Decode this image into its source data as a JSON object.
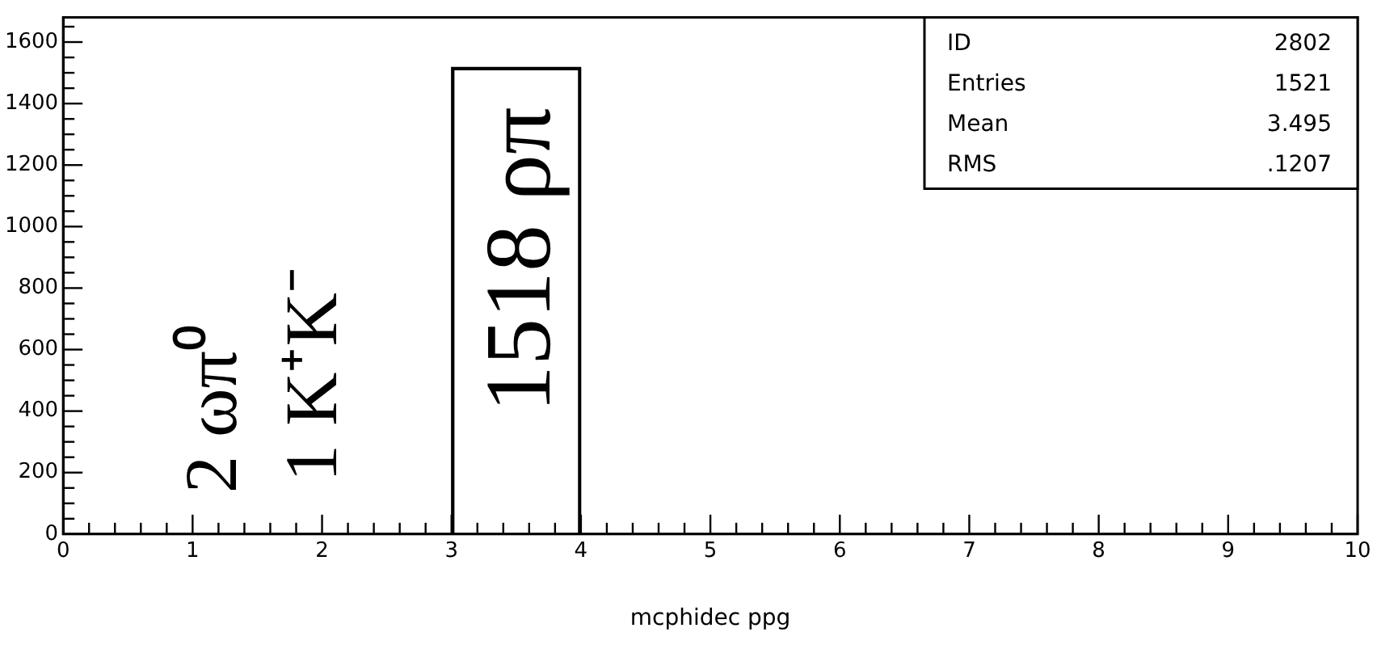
{
  "chart_data": {
    "type": "histogram",
    "xlabel": "mcphidec ppg",
    "bins": [
      0,
      1,
      2,
      3,
      4,
      5,
      6,
      7,
      8,
      9,
      10
    ],
    "values": [
      2,
      1,
      0,
      1518,
      0,
      0,
      0,
      0,
      0,
      0
    ],
    "color": "#000000",
    "xlim": [
      0,
      10
    ],
    "xticks": [
      0,
      {
        "value": 0.2,
        "label": null
      },
      {
        "value": 0.4,
        "label": null
      },
      {
        "value": 0.6,
        "label": null
      },
      {
        "value": 0.8,
        "label": null
      },
      1,
      {
        "value": 1.2,
        "label": null
      },
      {
        "value": 1.4,
        "label": null
      },
      {
        "value": 1.6,
        "label": null
      },
      {
        "value": 1.8,
        "label": null
      },
      2,
      {
        "value": 2.2,
        "label": null
      },
      {
        "value": 2.4,
        "label": null
      },
      {
        "value": 2.6,
        "label": null
      },
      {
        "value": 2.8,
        "label": null
      },
      3,
      {
        "value": 3.2,
        "label": null
      },
      {
        "value": 3.4,
        "label": null
      },
      {
        "value": 3.6,
        "label": null
      },
      {
        "value": 3.8,
        "label": null
      },
      4,
      {
        "value": 4.2,
        "label": null
      },
      {
        "value": 4.4,
        "label": null
      },
      {
        "value": 4.6,
        "label": null
      },
      {
        "value": 4.8,
        "label": null
      },
      5,
      {
        "value": 5.2,
        "label": null
      },
      {
        "value": 5.4,
        "label": null
      },
      {
        "value": 5.6,
        "label": null
      },
      {
        "value": 5.8,
        "label": null
      },
      6,
      {
        "value": 6.2,
        "label": null
      },
      {
        "value": 6.4,
        "label": null
      },
      {
        "value": 6.6,
        "label": null
      },
      {
        "value": 6.8,
        "label": null
      },
      7,
      {
        "value": 7.2,
        "label": null
      },
      {
        "value": 7.4,
        "label": null
      },
      {
        "value": 7.6,
        "label": null
      },
      {
        "value": 7.8,
        "label": null
      },
      8,
      {
        "value": 8.2,
        "label": null
      },
      {
        "value": 8.4,
        "label": null
      },
      {
        "value": 8.6,
        "label": null
      },
      {
        "value": 8.8,
        "label": null
      },
      9,
      {
        "value": 9.2,
        "label": null
      },
      {
        "value": 9.4,
        "label": null
      },
      {
        "value": 9.6,
        "label": null
      },
      {
        "value": 9.8,
        "label": null
      },
      10
    ],
    "ylim": [
      0,
      1680
    ],
    "yticks": [
      0,
      {
        "value": 50,
        "label": null
      },
      {
        "value": 100,
        "label": null
      },
      {
        "value": 150,
        "label": null
      },
      200,
      {
        "value": 250,
        "label": null
      },
      {
        "value": 300,
        "label": null
      },
      {
        "value": 350,
        "label": null
      },
      400,
      {
        "value": 450,
        "label": null
      },
      {
        "value": 500,
        "label": null
      },
      {
        "value": 550,
        "label": null
      },
      600,
      {
        "value": 650,
        "label": null
      },
      {
        "value": 700,
        "label": null
      },
      {
        "value": 750,
        "label": null
      },
      800,
      {
        "value": 850,
        "label": null
      },
      {
        "value": 900,
        "label": null
      },
      {
        "value": 950,
        "label": null
      },
      1000,
      {
        "value": 1050,
        "label": null
      },
      {
        "value": 1100,
        "label": null
      },
      {
        "value": 1150,
        "label": null
      },
      1200,
      {
        "value": 1250,
        "label": null
      },
      {
        "value": 1300,
        "label": null
      },
      {
        "value": 1350,
        "label": null
      },
      1400,
      {
        "value": 1450,
        "label": null
      },
      {
        "value": 1500,
        "label": null
      },
      {
        "value": 1550,
        "label": null
      },
      1600,
      {
        "value": 1650,
        "label": null
      }
    ],
    "annotations": [
      "2 ωπ⁰",
      "1 K⁺K⁻",
      "1518 ρπ",
      "ID 2802",
      "Entries 1521",
      "Mean 3.495",
      "RMS .1207"
    ]
  }
}
